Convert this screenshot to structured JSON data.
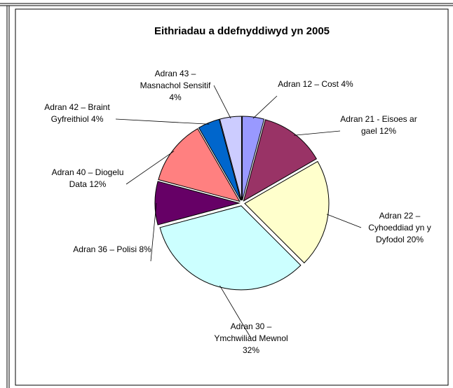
{
  "chart_data": {
    "type": "pie",
    "title": "Eithriadau a ddefnyddiwyd yn 2005",
    "categories": [
      "Adran 12 – Cost",
      "Adran 21 - Eisoes ar gael",
      "Adran 22 – Cyhoeddiad yn y Dyfodol",
      "Adran 30 – Ymchwiliad Mewnol",
      "Adran 36 – Polisi",
      "Adran 40 – Diogelu Data",
      "Adran 42 – Braint Gyfreithiol",
      "Adran 43 – Masnachol Sensitif"
    ],
    "values": [
      4,
      12,
      20,
      32,
      8,
      12,
      4,
      4
    ],
    "value_labels": [
      "4%",
      "12%",
      "20%",
      "32%",
      "8%",
      "12%",
      "4%",
      "4%"
    ],
    "colors": [
      "#9999ff",
      "#993366",
      "#ffffcc",
      "#ccffff",
      "#660066",
      "#ff8080",
      "#0066cc",
      "#ccccff"
    ]
  }
}
